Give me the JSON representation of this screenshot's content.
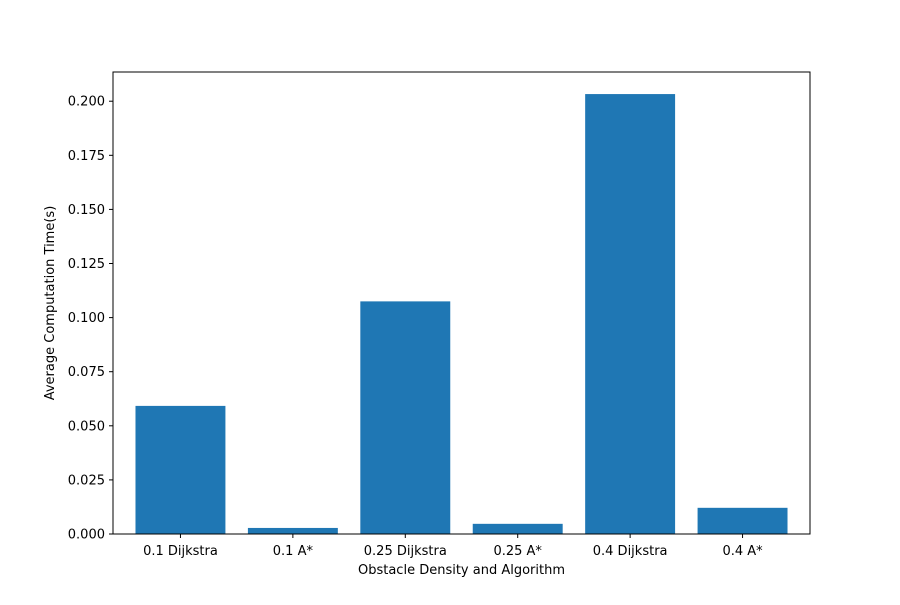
{
  "chart_data": {
    "type": "bar",
    "title": "",
    "xlabel": "Obstacle Density and Algorithm",
    "ylabel": "Average Computation Time(s)",
    "categories": [
      "0.1 Dijkstra",
      "0.1 A*",
      "0.25 Dijkstra",
      "0.25 A*",
      "0.4 Dijkstra",
      "0.4 A*"
    ],
    "values": [
      0.0592,
      0.0028,
      0.1075,
      0.0047,
      0.2033,
      0.0121
    ],
    "ylim": [
      0,
      0.2135
    ],
    "yticks": [
      0.0,
      0.025,
      0.05,
      0.075,
      0.1,
      0.125,
      0.15,
      0.175,
      0.2
    ],
    "ytick_labels": [
      "0.000",
      "0.025",
      "0.050",
      "0.075",
      "0.100",
      "0.125",
      "0.150",
      "0.175",
      "0.200"
    ],
    "bar_color": "#1f77b4",
    "grid": false,
    "legend": "none"
  }
}
